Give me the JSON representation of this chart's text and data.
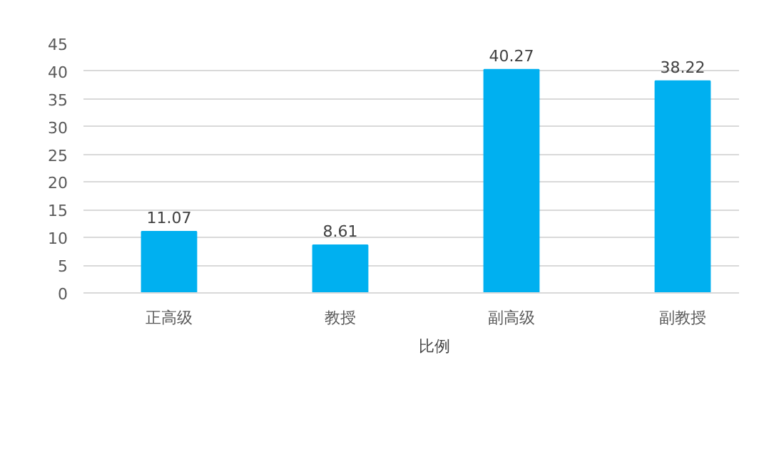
{
  "chart_data": {
    "type": "bar",
    "categories": [
      "正高级",
      "教授",
      "副高级",
      "副教授"
    ],
    "series": [
      {
        "name": "比例",
        "color": "#00b0f0",
        "values": [
          11.07,
          8.61,
          40.27,
          38.22
        ]
      }
    ],
    "ylim": [
      0,
      45
    ],
    "yticks": [
      0,
      5,
      10,
      15,
      20,
      25,
      30,
      35,
      40,
      45
    ],
    "grid": "y",
    "legend": "bottom",
    "data_labels": true
  }
}
